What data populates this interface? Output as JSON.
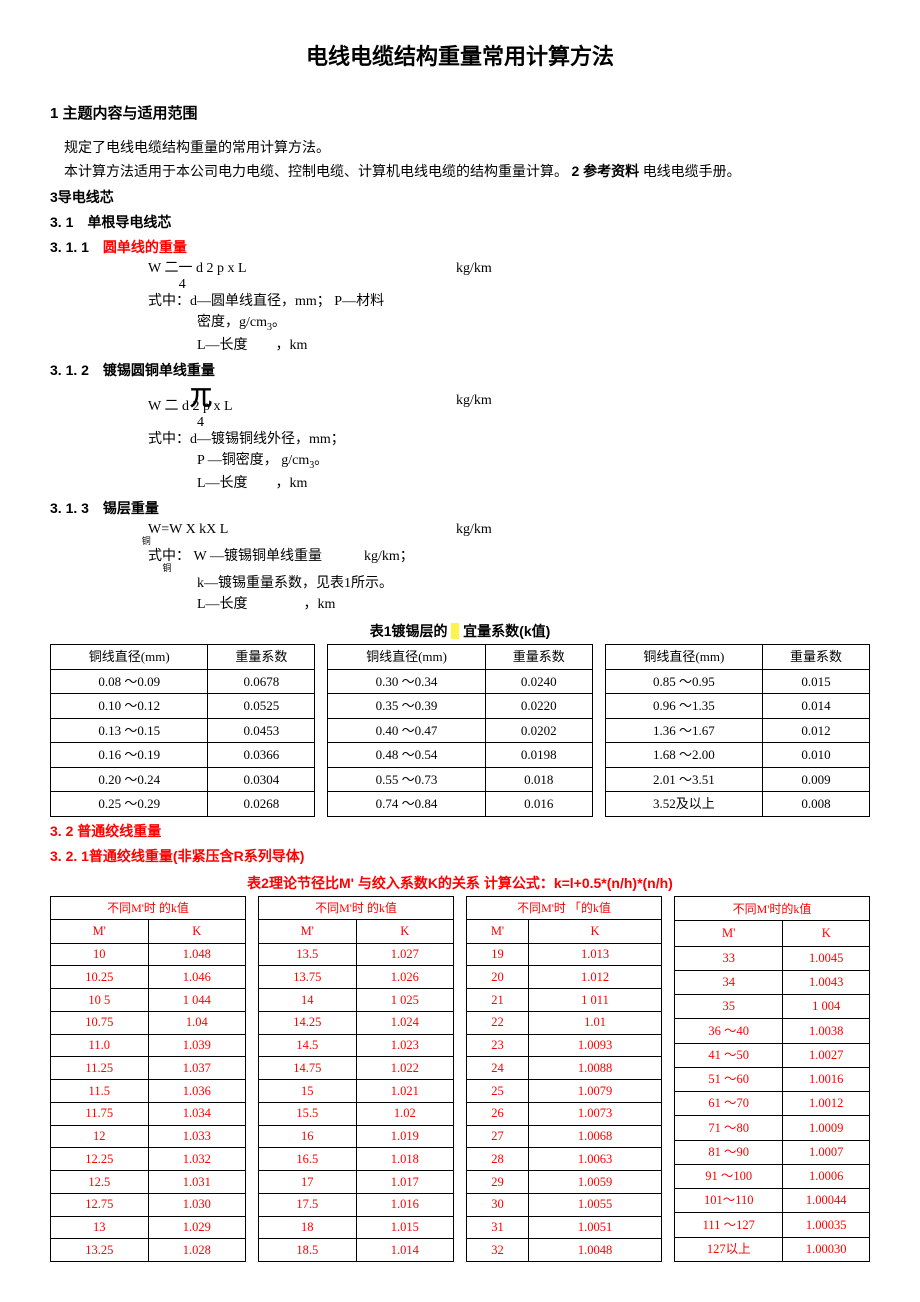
{
  "title": "电线电缆结构重量常用计算方法",
  "s1": {
    "head": "1 主题内容与适用范围",
    "p1": "规定了电线电缆结构重量的常用计算方法。",
    "p2_a": "本计算方法适用于本公司电力电缆、控制电缆、计算机电线电缆的结构重量计算。 ",
    "p2_b": "2 参考资料",
    "p2_c": " 电线电缆手册。"
  },
  "s3": {
    "head": "3导电线芯",
    "h31": "3. 1　单根导电线芯",
    "h311": "3. 1. 1　圆单线的重量",
    "f311": "W 二一  d 2 p x L",
    "f311_4": "4",
    "u311": "kg/km",
    "v311a": "式中：d—圆单线直径，mm；  P—材料",
    "v311b": "密度，g/cm3。",
    "v311c": "L—长度　　，km",
    "h312": "3. 1. 2　镀锡圆铜单线重量",
    "pi": "兀",
    "f312": "W 二  d 2 p x L",
    "f312_4": "4",
    "u312": "kg/km",
    "v312a": "式中：d—镀锡铜线外径，mm；",
    "v312b": "P —铜密度，  g/cm3。",
    "v312c": "L—长度　　，km",
    "h313": "3. 1. 3　锡层重量",
    "f313": "W=W X  kX  L",
    "u313": "kg/km",
    "v313a_pre": "式中：  W —镀锡铜单线重量　　　kg/km；",
    "sub_cu": "铜",
    "v313b": "k—镀锡重量系数，见表1所示。",
    "v313c": "L—长度　　　　，km"
  },
  "table1": {
    "caption_a": "表1镀锡层的",
    "caption_b": "宜量系数(k值)",
    "header_a": "铜线直径(mm)",
    "header_b": "重量系数",
    "cols": [
      [
        [
          "0.08 ～0.09",
          "0.0678"
        ],
        [
          "0.10 ～0.12",
          "0.0525"
        ],
        [
          "0.13 ～0.15",
          "0.0453"
        ],
        [
          "0.16 ～0.19",
          "0.0366"
        ],
        [
          "0.20 ～0.24",
          "0.0304"
        ],
        [
          "0.25 ～0.29",
          "0.0268"
        ]
      ],
      [
        [
          "0.30 ～0.34",
          "0.0240"
        ],
        [
          "0.35 ～0.39",
          "0.0220"
        ],
        [
          "0.40 ～0.47",
          "0.0202"
        ],
        [
          "0.48 ～0.54",
          "0.0198"
        ],
        [
          "0.55 ～0.73",
          "0.018"
        ],
        [
          "0.74 ～0.84",
          "0.016"
        ]
      ],
      [
        [
          "0.85 ～0.95",
          "0.015"
        ],
        [
          "0.96 ～1.35",
          "0.014"
        ],
        [
          "1.36 ～1.67",
          "0.012"
        ],
        [
          "1.68 ～2.00",
          "0.010"
        ],
        [
          "2.01 ～3.51",
          "0.009"
        ],
        [
          "3.52及以上",
          "0.008"
        ]
      ]
    ]
  },
  "s32": {
    "h32": "3. 2 普通绞线重量",
    "h321": "3. 2. 1普通绞线重量(非紧压含R系列导体)"
  },
  "table2": {
    "caption": "表2理论节径比M' 与绞入系数K的关系  计算公式：k=l+0.5*(n/h)*(n/h)",
    "super1": "不同M'时",
    "super2": "的k值",
    "super2b": "「的k值",
    "super_last": "不同M'时的k值",
    "head_m": "M'",
    "head_k": "K",
    "cols": [
      [
        [
          "10",
          "1.048"
        ],
        [
          "10.25",
          "1.046"
        ],
        [
          "10 5",
          "1 044"
        ],
        [
          "10.75",
          "1.04"
        ],
        [
          "11.0",
          "1.039"
        ],
        [
          "11.25",
          "1.037"
        ],
        [
          "11.5",
          "1.036"
        ],
        [
          "11.75",
          "1.034"
        ],
        [
          "12",
          "1.033"
        ],
        [
          "12.25",
          "1.032"
        ],
        [
          "12.5",
          "1.031"
        ],
        [
          "12.75",
          "1.030"
        ],
        [
          "13",
          "1.029"
        ],
        [
          "13.25",
          "1.028"
        ]
      ],
      [
        [
          "13.5",
          "1.027"
        ],
        [
          "13.75",
          "1.026"
        ],
        [
          "14",
          "1 025"
        ],
        [
          "14.25",
          "1.024"
        ],
        [
          "14.5",
          "1.023"
        ],
        [
          "14.75",
          "1.022"
        ],
        [
          "15",
          "1.021"
        ],
        [
          "15.5",
          "1.02"
        ],
        [
          "16",
          "1.019"
        ],
        [
          "16.5",
          "1.018"
        ],
        [
          "17",
          "1.017"
        ],
        [
          "17.5",
          "1.016"
        ],
        [
          "18",
          "1.015"
        ],
        [
          "18.5",
          "1.014"
        ]
      ],
      [
        [
          "19",
          "1.013"
        ],
        [
          "20",
          "1.012"
        ],
        [
          "21",
          "1 011"
        ],
        [
          "22",
          "1.01"
        ],
        [
          "23",
          "1.0093"
        ],
        [
          "24",
          "1.0088"
        ],
        [
          "25",
          "1.0079"
        ],
        [
          "26",
          "1.0073"
        ],
        [
          "27",
          "1.0068"
        ],
        [
          "28",
          "1.0063"
        ],
        [
          "29",
          "1.0059"
        ],
        [
          "30",
          "1.0055"
        ],
        [
          "31",
          "1.0051"
        ],
        [
          "32",
          "1.0048"
        ]
      ],
      [
        [
          "33",
          "1.0045"
        ],
        [
          "34",
          "1.0043"
        ],
        [
          "35",
          "1 004"
        ],
        [
          "36 ～40",
          "1.0038"
        ],
        [
          "41 ～50",
          "1.0027"
        ],
        [
          "51 ～60",
          "1.0016"
        ],
        [
          "61 ～70",
          "1.0012"
        ],
        [
          "71 ～80",
          "1.0009"
        ],
        [
          "81 ～90",
          "1.0007"
        ],
        [
          "91 ～100",
          "1.0006"
        ],
        [
          "101～110",
          "1.00044"
        ],
        [
          "111 ～127",
          "1.00035"
        ],
        [
          "127以上",
          "1.00030"
        ]
      ]
    ]
  },
  "colors": {
    "red": "#ff0000",
    "highlight": "#fff34a",
    "text": "#000000",
    "bg": "#ffffff",
    "border": "#000000"
  }
}
